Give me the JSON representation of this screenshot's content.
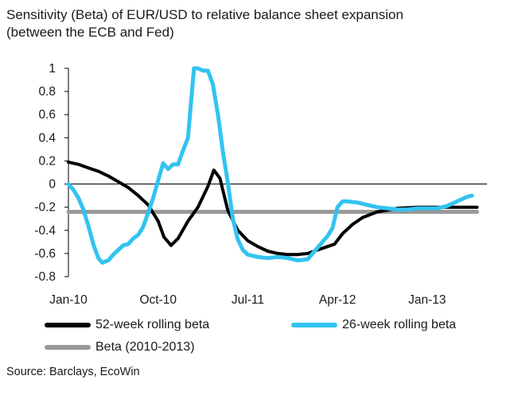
{
  "chart_data": {
    "type": "line",
    "title_line1": "Sensitivity (Beta) of EUR/USD to relative balance sheet expansion",
    "title_line2": "(between the ECB and Fed)",
    "x_ticks": [
      "Jan-10",
      "Oct-10",
      "Jul-11",
      "Apr-12",
      "Jan-13"
    ],
    "y_ticks": [
      "1",
      "0.8",
      "0.6",
      "0.4",
      "0.2",
      "0",
      "-0.2",
      "-0.4",
      "-0.6",
      "-0.8"
    ],
    "ylim": [
      -0.8,
      1.0
    ],
    "x_unit": "months since Jan-10",
    "xlim": [
      0,
      42
    ],
    "grid": false,
    "legend_position": "bottom",
    "series": [
      {
        "name": "52-week rolling beta",
        "color": "#000000",
        "points": [
          [
            0,
            0.19
          ],
          [
            1,
            0.17
          ],
          [
            2,
            0.14
          ],
          [
            3,
            0.11
          ],
          [
            4,
            0.07
          ],
          [
            5,
            0.02
          ],
          [
            6,
            -0.03
          ],
          [
            7,
            -0.1
          ],
          [
            8,
            -0.18
          ],
          [
            9,
            -0.32
          ],
          [
            9.6,
            -0.46
          ],
          [
            10.3,
            -0.53
          ],
          [
            11,
            -0.47
          ],
          [
            12,
            -0.32
          ],
          [
            13,
            -0.2
          ],
          [
            14,
            -0.02
          ],
          [
            14.6,
            0.12
          ],
          [
            15.2,
            0.05
          ],
          [
            16,
            -0.23
          ],
          [
            17,
            -0.4
          ],
          [
            18,
            -0.49
          ],
          [
            19,
            -0.54
          ],
          [
            20,
            -0.58
          ],
          [
            21,
            -0.6
          ],
          [
            22,
            -0.61
          ],
          [
            23,
            -0.61
          ],
          [
            24,
            -0.6
          ],
          [
            25,
            -0.57
          ],
          [
            26,
            -0.54
          ],
          [
            26.7,
            -0.52
          ],
          [
            27.5,
            -0.43
          ],
          [
            28.5,
            -0.35
          ],
          [
            29.5,
            -0.29
          ],
          [
            31,
            -0.24
          ],
          [
            33,
            -0.21
          ],
          [
            35,
            -0.2
          ],
          [
            37,
            -0.2
          ],
          [
            39,
            -0.2
          ],
          [
            40,
            -0.2
          ],
          [
            41,
            -0.2
          ]
        ]
      },
      {
        "name": "26-week rolling beta",
        "color": "#33c3f0",
        "points": [
          [
            0,
            0.0
          ],
          [
            0.5,
            -0.05
          ],
          [
            1,
            -0.12
          ],
          [
            1.5,
            -0.22
          ],
          [
            2,
            -0.36
          ],
          [
            2.5,
            -0.52
          ],
          [
            3,
            -0.64
          ],
          [
            3.4,
            -0.68
          ],
          [
            4,
            -0.66
          ],
          [
            4.5,
            -0.61
          ],
          [
            5,
            -0.57
          ],
          [
            5.5,
            -0.53
          ],
          [
            6,
            -0.52
          ],
          [
            6.5,
            -0.47
          ],
          [
            7,
            -0.44
          ],
          [
            7.5,
            -0.37
          ],
          [
            8,
            -0.25
          ],
          [
            8.5,
            -0.12
          ],
          [
            9,
            0.03
          ],
          [
            9.5,
            0.18
          ],
          [
            10,
            0.13
          ],
          [
            10.5,
            0.17
          ],
          [
            11,
            0.17
          ],
          [
            11.5,
            0.29
          ],
          [
            12,
            0.4
          ],
          [
            12.3,
            0.7
          ],
          [
            12.6,
            1.0
          ],
          [
            13,
            1.0
          ],
          [
            13.5,
            0.98
          ],
          [
            14,
            0.98
          ],
          [
            14.5,
            0.86
          ],
          [
            15,
            0.6
          ],
          [
            15.5,
            0.28
          ],
          [
            16,
            0.01
          ],
          [
            16.5,
            -0.3
          ],
          [
            17,
            -0.48
          ],
          [
            17.5,
            -0.57
          ],
          [
            18,
            -0.61
          ],
          [
            18.5,
            -0.62
          ],
          [
            19,
            -0.63
          ],
          [
            20,
            -0.64
          ],
          [
            21,
            -0.63
          ],
          [
            22,
            -0.64
          ],
          [
            23,
            -0.66
          ],
          [
            24,
            -0.65
          ],
          [
            25,
            -0.55
          ],
          [
            26,
            -0.45
          ],
          [
            26.5,
            -0.38
          ],
          [
            27,
            -0.2
          ],
          [
            27.5,
            -0.15
          ],
          [
            28,
            -0.15
          ],
          [
            29,
            -0.16
          ],
          [
            30,
            -0.18
          ],
          [
            31,
            -0.2
          ],
          [
            32,
            -0.21
          ],
          [
            33,
            -0.22
          ],
          [
            34,
            -0.22
          ],
          [
            35,
            -0.21
          ],
          [
            36,
            -0.21
          ],
          [
            37,
            -0.21
          ],
          [
            38,
            -0.19
          ],
          [
            39,
            -0.15
          ],
          [
            40,
            -0.11
          ],
          [
            40.5,
            -0.1
          ]
        ]
      },
      {
        "name": "Beta (2010-2013)",
        "color": "#999999",
        "points": [
          [
            0,
            -0.24
          ],
          [
            41,
            -0.24
          ]
        ]
      }
    ],
    "legend": [
      {
        "label": "52-week rolling beta",
        "color": "#000000"
      },
      {
        "label": "26-week rolling beta",
        "color": "#33c3f0"
      },
      {
        "label": "Beta (2010-2013)",
        "color": "#999999"
      }
    ],
    "source": "Source: Barclays, EcoWin"
  }
}
